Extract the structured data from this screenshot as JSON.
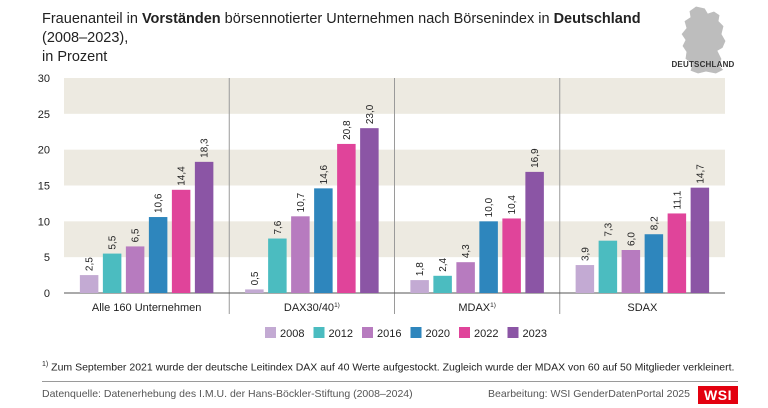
{
  "title": {
    "part1": "Frauenanteil in ",
    "bold1": "Vorständen",
    "part2": " börsennotierter Unternehmen nach Börsenindex in ",
    "bold2": "Deutschland",
    "part3": " (2008–2023),",
    "line2": "in Prozent"
  },
  "map_label": "DEUTSCHLAND",
  "chart_data": {
    "type": "bar",
    "categories": [
      "Alle 160 Unternehmen",
      "DAX30/40",
      "MDAX",
      "SDAX"
    ],
    "category_superscripts": [
      "",
      "1)",
      "1)",
      ""
    ],
    "series": [
      {
        "name": "2008",
        "color": "#c3aad3",
        "values": [
          2.5,
          0.5,
          1.8,
          3.9
        ],
        "labels": [
          "2,5",
          "0,5",
          "1,8",
          "3,9"
        ]
      },
      {
        "name": "2012",
        "color": "#4bbcc0",
        "values": [
          5.5,
          7.6,
          2.4,
          7.3
        ],
        "labels": [
          "5,5",
          "7,6",
          "2,4",
          "7,3"
        ]
      },
      {
        "name": "2016",
        "color": "#b77bbf",
        "values": [
          6.5,
          10.7,
          4.3,
          6.0
        ],
        "labels": [
          "6,5",
          "10,7",
          "4,3",
          "6,0"
        ]
      },
      {
        "name": "2020",
        "color": "#2e86bd",
        "values": [
          10.6,
          14.6,
          10.0,
          8.2
        ],
        "labels": [
          "10,6",
          "14,6",
          "10,0",
          "8,2"
        ]
      },
      {
        "name": "2022",
        "color": "#e0449a",
        "values": [
          14.4,
          20.8,
          10.4,
          11.1
        ],
        "labels": [
          "14,4",
          "20,8",
          "10,4",
          "11,1"
        ]
      },
      {
        "name": "2023",
        "color": "#8b55a5",
        "values": [
          18.3,
          23.0,
          16.9,
          14.7
        ],
        "labels": [
          "18,3",
          "23,0",
          "16,9",
          "14,7"
        ]
      }
    ],
    "ylim": [
      0,
      30
    ],
    "yticks": [
      0,
      5,
      10,
      15,
      20,
      25,
      30
    ],
    "ytick_labels": [
      "0",
      "5",
      "10",
      "15",
      "20",
      "25",
      "30"
    ],
    "xlabel": "",
    "ylabel": "",
    "legend_position": "bottom-center"
  },
  "footnote": {
    "marker": "1)",
    "text": " Zum September 2021 wurde der deutsche Leitindex DAX auf 40 Werte aufgestockt. Zugleich wurde der MDAX von 60 auf 50 Mitglieder verkleinert."
  },
  "source": "Datenquelle: Datenerhebung des I.M.U. der Hans-Böckler-Stiftung (2008–2024)",
  "credit": "Bearbeitung: WSI GenderDatenPortal 2025",
  "logo_text": "WSI",
  "colors": {
    "band": "#edeae1",
    "divider": "#9a9a9a",
    "brand": "#e3000f"
  }
}
